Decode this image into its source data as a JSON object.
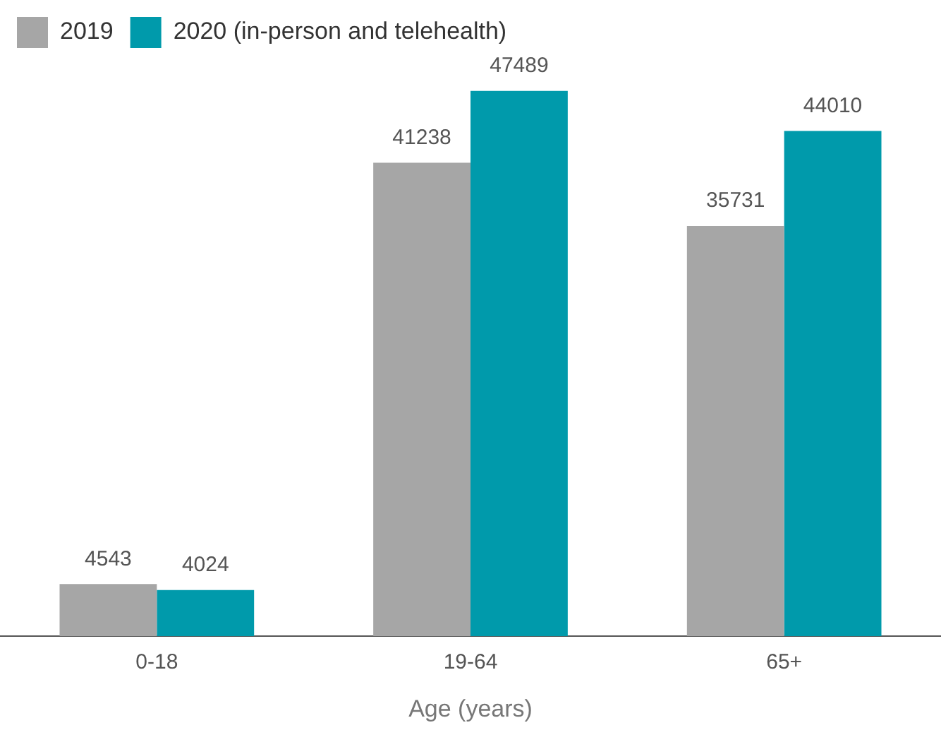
{
  "chart_data": {
    "type": "bar",
    "categories": [
      "0-18",
      "19-64",
      "65+"
    ],
    "series": [
      {
        "name": "2019",
        "color": "#a6a6a6",
        "values": [
          4543,
          41238,
          35731
        ]
      },
      {
        "name": "2020 (in-person and telehealth)",
        "color": "#009aab",
        "values": [
          4024,
          47489,
          44010
        ]
      }
    ],
    "xlabel": "Age (years)",
    "tick_labels": "x",
    "data_labels": true,
    "grid": false,
    "legend": "top left"
  }
}
